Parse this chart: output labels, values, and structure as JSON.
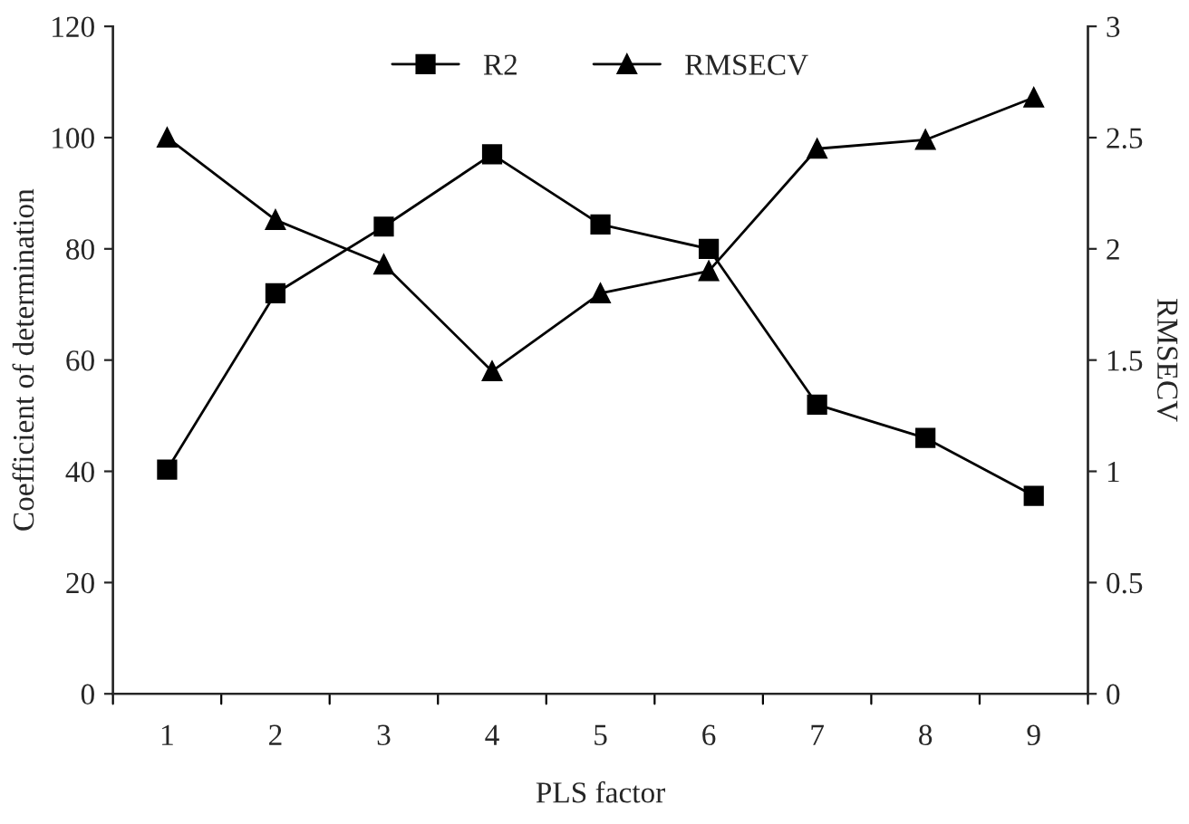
{
  "chart_data": {
    "type": "line",
    "xlabel": "PLS factor",
    "ylabel": "Coefficient of determination",
    "y2label": "RMSECV",
    "categories": [
      "1",
      "2",
      "3",
      "4",
      "5",
      "6",
      "7",
      "8",
      "9"
    ],
    "series": [
      {
        "name": "R2",
        "color": "#000000",
        "marker": "square",
        "values": [
          40.3,
          72,
          84,
          97,
          84.4,
          80,
          52,
          46,
          35.6
        ]
      },
      {
        "name": "RMSECV",
        "color": "#000000",
        "marker": "triangle",
        "axis": "y2",
        "values": [
          2.5,
          2.13,
          1.93,
          1.45,
          1.8,
          1.9,
          2.45,
          2.49,
          2.68
        ]
      }
    ],
    "ylim": [
      0,
      120
    ],
    "yticks": [
      0,
      20,
      40,
      60,
      80,
      100,
      120
    ],
    "y2lim": [
      0,
      3
    ],
    "y2ticks": [
      0,
      0.5,
      1,
      1.5,
      2,
      2.5,
      3
    ],
    "grid": false,
    "legend": "top",
    "line_style": "solid"
  }
}
